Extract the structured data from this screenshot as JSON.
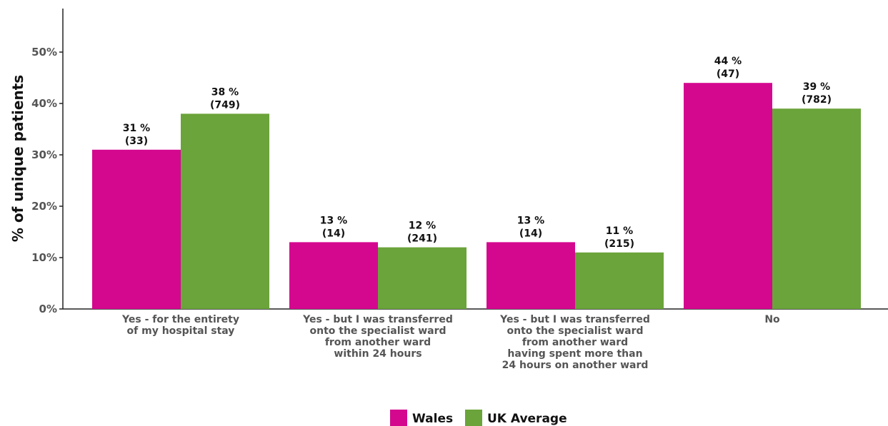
{
  "chart_data": {
    "type": "bar",
    "categories": [
      "Yes - for the entirety of my hospital stay",
      "Yes - but I was transferred onto the specialist ward from another ward within 24 hours",
      "Yes - but I was transferred onto the specialist ward from another ward having spent more than 24 hours on another ward",
      "No"
    ],
    "category_lines": [
      [
        "Yes - for the entirety",
        "of my hospital stay"
      ],
      [
        "Yes - but I was transferred",
        "onto the specialist ward",
        "from another ward",
        "within 24 hours"
      ],
      [
        "Yes - but I was transferred",
        "onto the specialist ward",
        "from another ward",
        "having spent more than",
        "24 hours on another ward"
      ],
      [
        "No"
      ]
    ],
    "series": [
      {
        "name": "Wales",
        "color": "#d4088f",
        "values": [
          31,
          13,
          13,
          44
        ],
        "labels": [
          "31 %",
          "13 %",
          "13 %",
          "44 %"
        ],
        "counts": [
          "(33)",
          "(14)",
          "(14)",
          "(47)"
        ]
      },
      {
        "name": "UK Average",
        "color": "#6aa43a",
        "values": [
          38,
          12,
          11,
          39
        ],
        "labels": [
          "38 %",
          "12 %",
          "11 %",
          "39 %"
        ],
        "counts": [
          "(749)",
          "(241)",
          "(215)",
          "(782)"
        ]
      }
    ],
    "ylabel": "% of unique patients",
    "yticks": [
      "0%",
      "10%",
      "20%",
      "30%",
      "40%",
      "50%"
    ],
    "ytick_values": [
      0,
      10,
      20,
      30,
      40,
      50
    ],
    "ylim": [
      0,
      58
    ],
    "grid": false,
    "legend": "bottom-center"
  }
}
